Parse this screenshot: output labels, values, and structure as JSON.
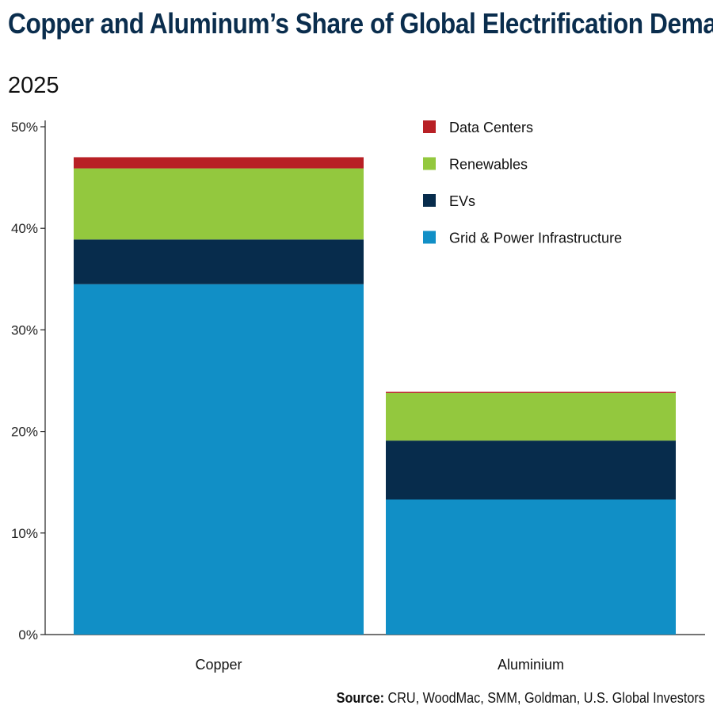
{
  "chart_data": {
    "type": "bar",
    "stacked": true,
    "title": "Copper and Aluminum’s Share of Global Electrification Demand",
    "subtitle": "2025",
    "categories": [
      "Copper",
      "Aluminium"
    ],
    "series": [
      {
        "name": "Grid & Power Infrastructure",
        "color": "#118fc6",
        "values": [
          34.5,
          13.3
        ]
      },
      {
        "name": "EVs",
        "color": "#072c4c",
        "values": [
          4.4,
          5.8
        ]
      },
      {
        "name": "Renewables",
        "color": "#93c83e",
        "values": [
          7.0,
          4.7
        ]
      },
      {
        "name": "Data Centers",
        "color": "#b82025",
        "values": [
          1.1,
          0.1
        ]
      }
    ],
    "ylim": [
      0,
      50
    ],
    "yticks": [
      "0%",
      "10%",
      "20%",
      "30%",
      "40%",
      "50%"
    ],
    "xlabel": "",
    "ylabel": "",
    "grid": false,
    "legend_position": "top-right",
    "legend_order": [
      "Data Centers",
      "Renewables",
      "EVs",
      "Grid & Power Infrastructure"
    ]
  },
  "source": {
    "label": "Source:",
    "text": " CRU, WoodMac, SMM, Goldman, U.S. Global Investors"
  }
}
